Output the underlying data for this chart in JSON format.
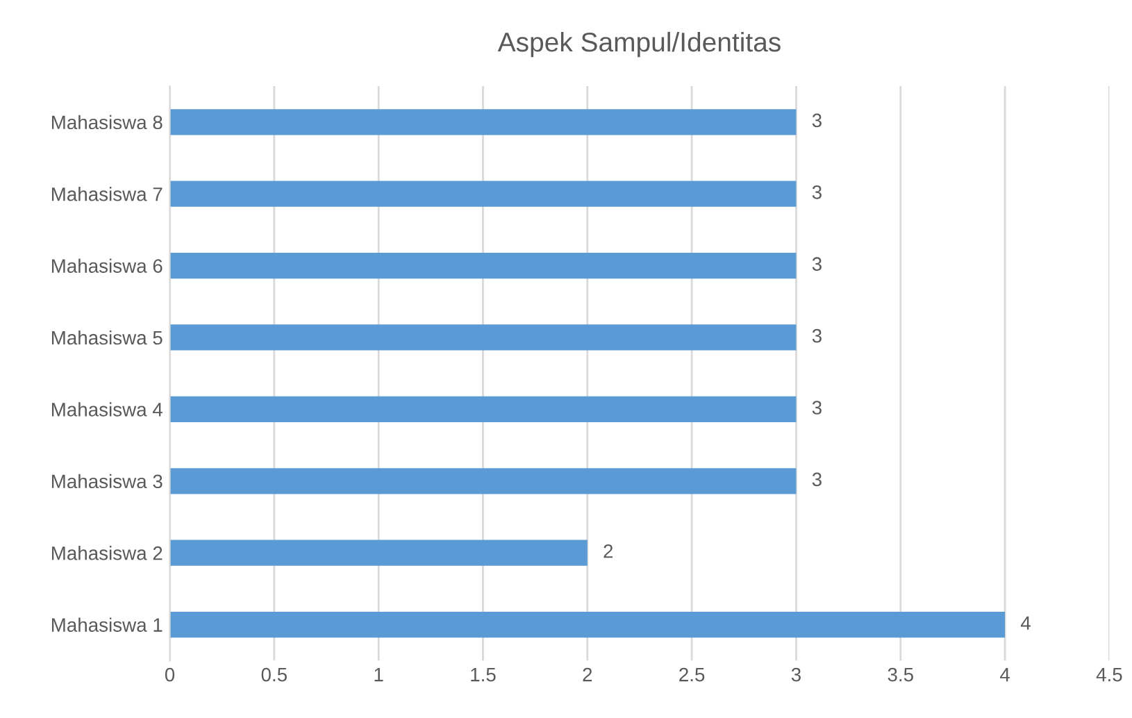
{
  "chart_data": {
    "type": "bar",
    "orientation": "horizontal",
    "title": "Aspek Sampul/Identitas",
    "categories": [
      "Mahasiswa 8",
      "Mahasiswa 7",
      "Mahasiswa 6",
      "Mahasiswa 5",
      "Mahasiswa 4",
      "Mahasiswa 3",
      "Mahasiswa 2",
      "Mahasiswa 1"
    ],
    "values": [
      3,
      3,
      3,
      3,
      3,
      3,
      2,
      4
    ],
    "color": "#5b9bd5",
    "xlim": [
      0,
      4.5
    ],
    "xticks": [
      0,
      0.5,
      1,
      1.5,
      2,
      2.5,
      3,
      3.5,
      4,
      4.5
    ],
    "grid": "x",
    "data_labels": true,
    "legend": false
  }
}
